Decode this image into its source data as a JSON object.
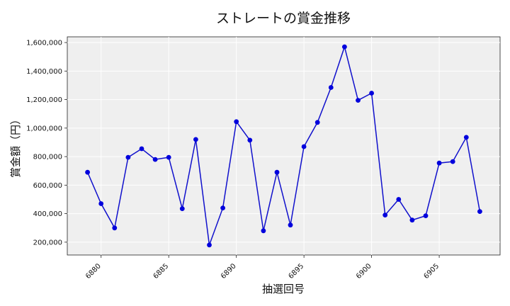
{
  "chart_data": {
    "type": "line",
    "title": "ストレートの賞金推移",
    "xlabel": "抽選回号",
    "ylabel": "賞金額（円）",
    "x": [
      6879,
      6880,
      6881,
      6882,
      6883,
      6884,
      6885,
      6886,
      6887,
      6888,
      6889,
      6890,
      6891,
      6892,
      6893,
      6894,
      6895,
      6896,
      6897,
      6898,
      6899,
      6900,
      6901,
      6902,
      6903,
      6904,
      6905,
      6906,
      6907,
      6908
    ],
    "series": [
      {
        "values": [
          690000,
          470000,
          300000,
          795000,
          855000,
          780000,
          795000,
          435000,
          920000,
          180000,
          440000,
          1045000,
          915000,
          280000,
          690000,
          320000,
          870000,
          1040000,
          1285000,
          1570000,
          1195000,
          1245000,
          390000,
          500000,
          355000,
          385000,
          755000,
          765000,
          935000,
          415000
        ]
      }
    ],
    "x_ticks": [
      "6880",
      "6885",
      "6890",
      "6895",
      "6900",
      "6905"
    ],
    "y_ticks": [
      "200,000",
      "400,000",
      "600,000",
      "800,000",
      "1,000,000",
      "1,200,000",
      "1,400,000",
      "1,600,000"
    ],
    "xlim": [
      6877.5,
      6909.5
    ],
    "ylim": [
      110000,
      1640000
    ],
    "grid": true,
    "colors": {
      "line": "#1010cc",
      "marker": "#0000dd",
      "plot_bg": "#efefef",
      "grid": "#ffffff"
    }
  }
}
